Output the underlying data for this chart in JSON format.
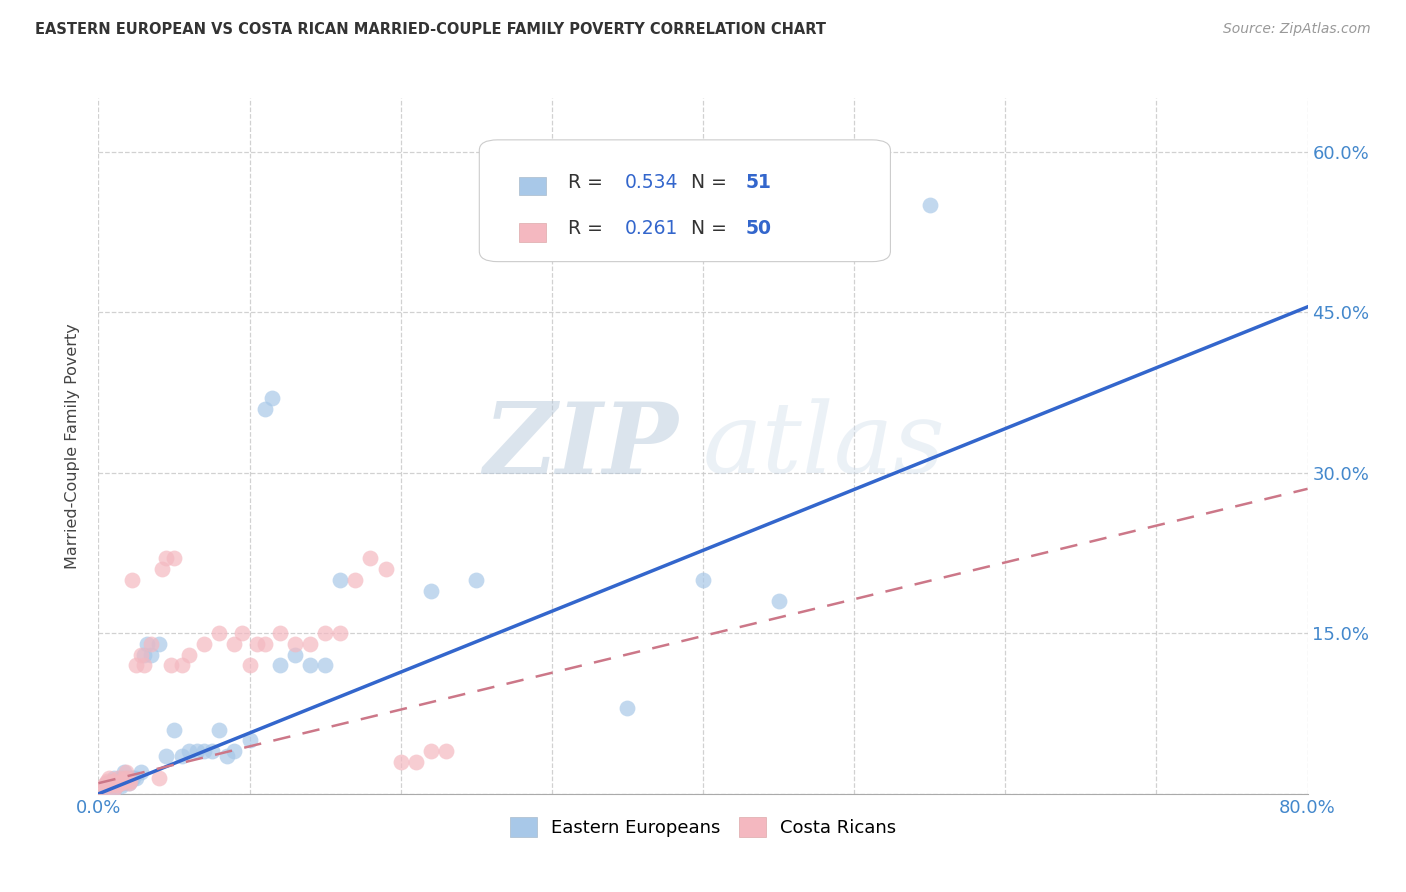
{
  "title": "EASTERN EUROPEAN VS COSTA RICAN MARRIED-COUPLE FAMILY POVERTY CORRELATION CHART",
  "source": "Source: ZipAtlas.com",
  "ylabel": "Married-Couple Family Poverty",
  "xlim": [
    0,
    0.8
  ],
  "ylim": [
    0,
    0.65
  ],
  "xticks": [
    0.0,
    0.1,
    0.2,
    0.3,
    0.4,
    0.5,
    0.6,
    0.7,
    0.8
  ],
  "xticklabels": [
    "0.0%",
    "",
    "",
    "",
    "",
    "",
    "",
    "",
    "80.0%"
  ],
  "yticks": [
    0.0,
    0.15,
    0.3,
    0.45,
    0.6
  ],
  "yticklabels": [
    "",
    "15.0%",
    "30.0%",
    "45.0%",
    "60.0%"
  ],
  "blue_R": "0.534",
  "blue_N": "51",
  "pink_R": "0.261",
  "pink_N": "50",
  "blue_scatter_color": "#a8c8e8",
  "pink_scatter_color": "#f4b8c0",
  "blue_line_color": "#3366cc",
  "pink_line_color": "#cc7788",
  "legend_label_blue": "Eastern Europeans",
  "legend_label_pink": "Costa Ricans",
  "blue_line_x0": 0.0,
  "blue_line_y0": 0.0,
  "blue_line_x1": 0.8,
  "blue_line_y1": 0.455,
  "pink_line_x0": 0.0,
  "pink_line_y0": 0.01,
  "pink_line_x1": 0.8,
  "pink_line_y1": 0.285,
  "blue_scatter_x": [
    0.005,
    0.006,
    0.007,
    0.008,
    0.009,
    0.01,
    0.01,
    0.01,
    0.012,
    0.013,
    0.014,
    0.015,
    0.015,
    0.016,
    0.017,
    0.018,
    0.019,
    0.02,
    0.021,
    0.022,
    0.023,
    0.025,
    0.028,
    0.03,
    0.032,
    0.035,
    0.04,
    0.045,
    0.05,
    0.055,
    0.06,
    0.065,
    0.07,
    0.075,
    0.08,
    0.085,
    0.09,
    0.1,
    0.11,
    0.115,
    0.12,
    0.13,
    0.14,
    0.15,
    0.16,
    0.22,
    0.25,
    0.35,
    0.4,
    0.45,
    0.55
  ],
  "blue_scatter_y": [
    0.005,
    0.01,
    0.008,
    0.006,
    0.012,
    0.005,
    0.01,
    0.015,
    0.008,
    0.012,
    0.01,
    0.007,
    0.015,
    0.01,
    0.02,
    0.012,
    0.015,
    0.01,
    0.012,
    0.015,
    0.015,
    0.015,
    0.02,
    0.13,
    0.14,
    0.13,
    0.14,
    0.035,
    0.06,
    0.035,
    0.04,
    0.04,
    0.04,
    0.04,
    0.06,
    0.035,
    0.04,
    0.05,
    0.36,
    0.37,
    0.12,
    0.13,
    0.12,
    0.12,
    0.2,
    0.19,
    0.2,
    0.08,
    0.2,
    0.18,
    0.55
  ],
  "pink_scatter_x": [
    0.003,
    0.004,
    0.005,
    0.006,
    0.007,
    0.008,
    0.009,
    0.01,
    0.01,
    0.012,
    0.013,
    0.014,
    0.015,
    0.016,
    0.017,
    0.018,
    0.019,
    0.02,
    0.021,
    0.022,
    0.025,
    0.028,
    0.03,
    0.035,
    0.04,
    0.042,
    0.045,
    0.048,
    0.05,
    0.055,
    0.06,
    0.07,
    0.08,
    0.09,
    0.095,
    0.1,
    0.105,
    0.11,
    0.12,
    0.13,
    0.14,
    0.15,
    0.16,
    0.17,
    0.18,
    0.19,
    0.2,
    0.21,
    0.22,
    0.23
  ],
  "pink_scatter_y": [
    0.005,
    0.008,
    0.01,
    0.012,
    0.015,
    0.008,
    0.01,
    0.005,
    0.012,
    0.008,
    0.015,
    0.01,
    0.01,
    0.012,
    0.015,
    0.02,
    0.015,
    0.01,
    0.012,
    0.2,
    0.12,
    0.13,
    0.12,
    0.14,
    0.015,
    0.21,
    0.22,
    0.12,
    0.22,
    0.12,
    0.13,
    0.14,
    0.15,
    0.14,
    0.15,
    0.12,
    0.14,
    0.14,
    0.15,
    0.14,
    0.14,
    0.15,
    0.15,
    0.2,
    0.22,
    0.21,
    0.03,
    0.03,
    0.04,
    0.04
  ]
}
